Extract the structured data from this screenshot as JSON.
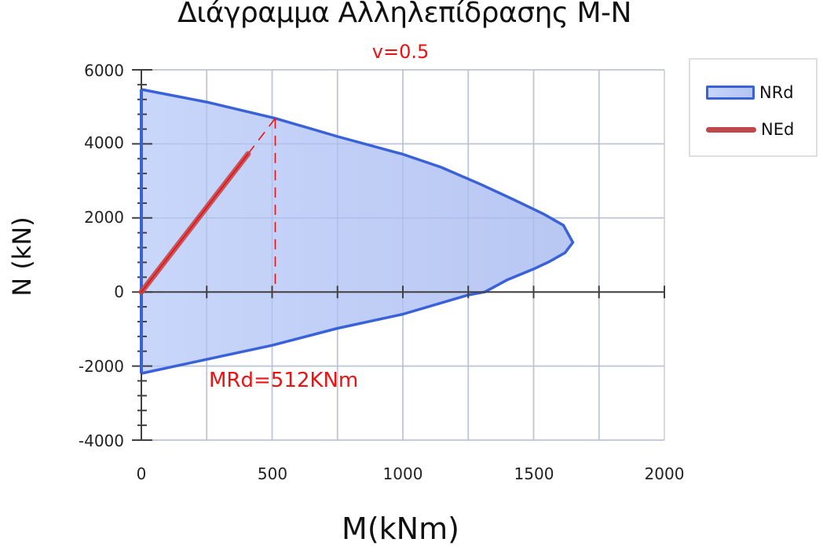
{
  "chart_data": {
    "type": "area",
    "title": "Διάγραμμα Αλληλεπίδρασης M-N",
    "subtitle": "v=0.5",
    "xlabel": "M(kNm)",
    "ylabel": "N (kN)",
    "xlim": [
      0,
      2000
    ],
    "ylim": [
      -4000,
      6000
    ],
    "x_ticks": [
      0,
      500,
      1000,
      1500,
      2000
    ],
    "x_tick_labels": [
      "0",
      "500",
      "1000",
      "1500",
      "2000"
    ],
    "x_minor_step": 250,
    "y_ticks": [
      -4000,
      -2000,
      0,
      2000,
      4000,
      6000
    ],
    "y_tick_labels": [
      "-4000",
      "-2000",
      "0",
      "2000",
      "4000",
      "6000"
    ],
    "y_minor_step": 400,
    "grid": true,
    "legend_position": "right-top",
    "series": [
      {
        "name": "NRd",
        "kind": "filled-area",
        "color": "#3a62d8",
        "fill": [
          "#c6d4fa",
          "#b4c4f2"
        ],
        "points": [
          [
            0,
            5470
          ],
          [
            250,
            5130
          ],
          [
            512,
            4690
          ],
          [
            750,
            4200
          ],
          [
            1000,
            3720
          ],
          [
            1146,
            3370
          ],
          [
            1300,
            2900
          ],
          [
            1422,
            2500
          ],
          [
            1540,
            2100
          ],
          [
            1614,
            1800
          ],
          [
            1650,
            1340
          ],
          [
            1620,
            1060
          ],
          [
            1560,
            820
          ],
          [
            1500,
            620
          ],
          [
            1400,
            330
          ],
          [
            1313,
            0
          ],
          [
            1250,
            -80
          ],
          [
            1000,
            -600
          ],
          [
            750,
            -980
          ],
          [
            500,
            -1440
          ],
          [
            250,
            -1820
          ],
          [
            0,
            -2200
          ]
        ]
      },
      {
        "name": "NEd",
        "kind": "line",
        "color": "#c0474a",
        "inner_color": "#ff0000",
        "points": [
          [
            0,
            0
          ],
          [
            408,
            3730
          ]
        ]
      }
    ],
    "annotations": [
      {
        "type": "dashed-line",
        "color": "#ee1111",
        "points": [
          [
            408,
            3730
          ],
          [
            512,
            4690
          ]
        ]
      },
      {
        "type": "dashed-line",
        "color": "#ee1111",
        "points": [
          [
            512,
            4690
          ],
          [
            512,
            0
          ]
        ]
      },
      {
        "type": "text",
        "text": "MRd=512KNm",
        "color": "#ee1111",
        "at": [
          265,
          -2500
        ]
      }
    ]
  },
  "legend": {
    "items": [
      {
        "label": "NRd"
      },
      {
        "label": "NEd"
      }
    ]
  },
  "annotation_text": "MRd=512KNm"
}
